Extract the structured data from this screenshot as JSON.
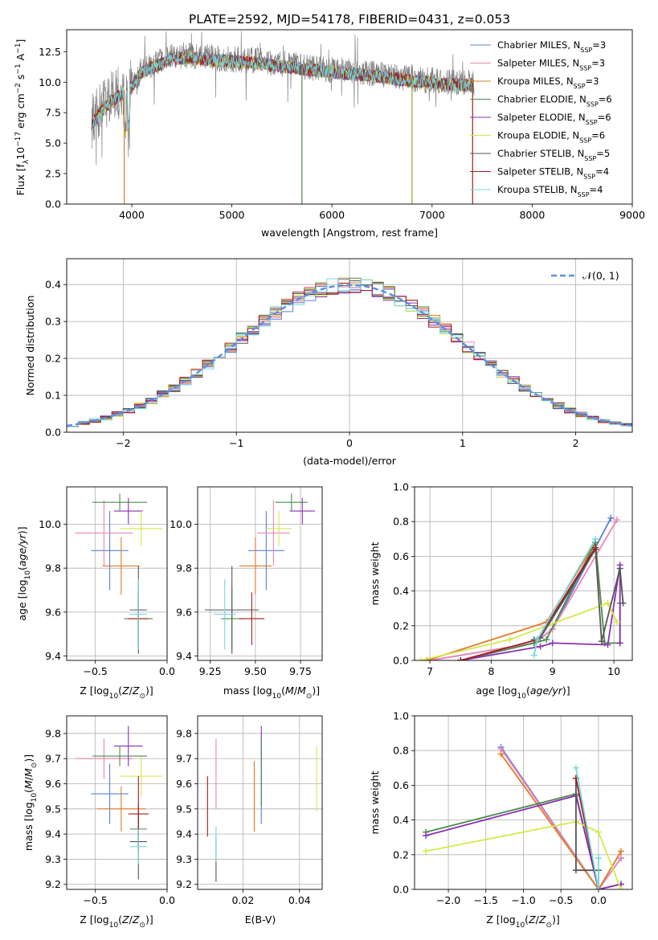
{
  "figure_title": "PLATE=2592, MJD=54178, FIBERID=0431, z=0.053",
  "colors": {
    "Chabrier MILES": "#5b7fd6",
    "Salpeter MILES": "#ee85b5",
    "Kroupa MILES": "#e07b25",
    "Chabrier ELODIE": "#4c8a4c",
    "Salpeter ELODIE": "#8b2fb5",
    "Kroupa ELODIE": "#d4e84a",
    "Chabrier STELIB": "#555555",
    "Salpeter STELIB": "#a01c1c",
    "Kroupa STELIB": "#74d8e0",
    "normal": "#5b8ee6",
    "grid": "#b0b0b0"
  },
  "chart_data": [
    {
      "id": "spectrum",
      "type": "line",
      "title": "PLATE=2592, MJD=54178, FIBERID=0431, z=0.053",
      "xlabel": "wavelength [Angstrom, rest frame]",
      "ylabel": "Flux [f_λ 10^-17 erg cm^-2 s^-1 A^-1]",
      "xlim": [
        3350,
        9000
      ],
      "ylim": [
        0,
        14.3
      ],
      "xticks": [
        "4000",
        "5000",
        "6000",
        "7000",
        "8000",
        "9000"
      ],
      "yticks": [
        "0.0",
        "2.5",
        "5.0",
        "7.5",
        "10.0",
        "12.5"
      ],
      "grid": false,
      "legend_position": "right",
      "data_range": [
        3600,
        7420
      ],
      "continuum": [
        [
          3600,
          6.8
        ],
        [
          3700,
          7.8
        ],
        [
          3800,
          8.7
        ],
        [
          3900,
          9.2
        ],
        [
          4000,
          9.8
        ],
        [
          4100,
          11.0
        ],
        [
          4200,
          11.4
        ],
        [
          4300,
          11.7
        ],
        [
          4400,
          12.1
        ],
        [
          4600,
          12.2
        ],
        [
          4800,
          12.0
        ],
        [
          5000,
          11.9
        ],
        [
          5200,
          11.8
        ],
        [
          5500,
          11.5
        ],
        [
          5800,
          11.2
        ],
        [
          6000,
          11.0
        ],
        [
          6300,
          10.8
        ],
        [
          6600,
          10.5
        ],
        [
          6900,
          10.2
        ],
        [
          7200,
          10.0
        ],
        [
          7420,
          9.9
        ]
      ],
      "series": [
        {
          "name": "Chabrier MILES",
          "nssp": "3"
        },
        {
          "name": "Salpeter MILES",
          "nssp": "3"
        },
        {
          "name": "Kroupa MILES",
          "nssp": "3"
        },
        {
          "name": "Chabrier ELODIE",
          "nssp": "6"
        },
        {
          "name": "Salpeter ELODIE",
          "nssp": "6"
        },
        {
          "name": "Kroupa ELODIE",
          "nssp": "6"
        },
        {
          "name": "Chabrier STELIB",
          "nssp": "5"
        },
        {
          "name": "Salpeter STELIB",
          "nssp": "4"
        },
        {
          "name": "Kroupa STELIB",
          "nssp": "4"
        }
      ],
      "legend_suffix": "N",
      "legend_subscript": "SSP",
      "spikes": [
        {
          "x": 3925,
          "color": "#e07b25"
        },
        {
          "x": 5700,
          "color": "#4c8a4c"
        },
        {
          "x": 6800,
          "color": "#a0a020"
        },
        {
          "x": 7405,
          "color": "#a01c1c"
        }
      ]
    },
    {
      "id": "residuals",
      "type": "step",
      "xlabel": "(data-model)/error",
      "ylabel": "Normed distribution",
      "xlim": [
        -2.5,
        2.5
      ],
      "ylim": [
        0,
        0.47
      ],
      "xticks": [
        "−2",
        "−1",
        "0",
        "1",
        "2"
      ],
      "yticks": [
        "0.0",
        "0.1",
        "0.2",
        "0.3",
        "0.4"
      ],
      "grid": true,
      "legend": "𝒩(0, 1)",
      "legend_position": "top-right",
      "bin_width": 0.1
    },
    {
      "id": "age-vs-Z",
      "type": "errorbar",
      "xlabel": "Z [log10(Z/Z⊙)]",
      "ylabel": "age [log10(age/yr)]",
      "xlim": [
        -0.7,
        0.0
      ],
      "ylim": [
        9.38,
        10.17
      ],
      "xticks": [
        "−0.5",
        "0.0"
      ],
      "yticks": [
        "9.4",
        "9.6",
        "9.8",
        "10.0"
      ],
      "grid": true,
      "points": [
        {
          "series": "Chabrier MILES",
          "x": -0.4,
          "xerr": 0.13,
          "y": 9.88,
          "yerr": 0.18
        },
        {
          "series": "Salpeter MILES",
          "x": -0.44,
          "xerr": 0.2,
          "y": 9.96,
          "yerr": 0.15
        },
        {
          "series": "Kroupa MILES",
          "x": -0.32,
          "xerr": 0.13,
          "y": 9.81,
          "yerr": 0.13
        },
        {
          "series": "Chabrier ELODIE",
          "x": -0.2,
          "xerr": 0.1,
          "y": 9.57,
          "yerr": 0.14
        },
        {
          "series": "Salpeter ELODIE",
          "x": -0.27,
          "xerr": 0.1,
          "y": 10.06,
          "yerr": 0.06
        },
        {
          "series": "Kroupa ELODIE",
          "x": -0.18,
          "xerr": 0.15,
          "y": 9.98,
          "yerr": 0.08
        },
        {
          "series": "Chabrier STELIB",
          "x": -0.2,
          "xerr": 0.06,
          "y": 9.61,
          "yerr": 0.2
        },
        {
          "series": "Salpeter STELIB",
          "x": -0.2,
          "xerr": 0.07,
          "y": 9.57,
          "yerr": 0.12
        },
        {
          "series": "Kroupa STELIB",
          "x": -0.2,
          "xerr": 0.06,
          "y": 9.59,
          "yerr": 0.16
        },
        {
          "series": "Chabrier ELODIE",
          "x": -0.33,
          "xerr": 0.19,
          "y": 10.1,
          "yerr": 0.04
        }
      ]
    },
    {
      "id": "age-vs-mass",
      "type": "errorbar",
      "xlabel": "mass [log10(M/M⊙)]",
      "ylabel": "",
      "xlim": [
        9.18,
        9.87
      ],
      "ylim": [
        9.38,
        10.17
      ],
      "xticks": [
        "9.25",
        "9.50",
        "9.75"
      ],
      "yticks": [
        "9.4",
        "9.6",
        "9.8",
        "10.0"
      ],
      "grid": true,
      "points": [
        {
          "series": "Chabrier MILES",
          "x": 9.56,
          "xerr": 0.1,
          "y": 9.88,
          "yerr": 0.18
        },
        {
          "series": "Salpeter MILES",
          "x": 9.6,
          "xerr": 0.09,
          "y": 9.96,
          "yerr": 0.15
        },
        {
          "series": "Kroupa MILES",
          "x": 9.5,
          "xerr": 0.09,
          "y": 9.81,
          "yerr": 0.13
        },
        {
          "series": "Chabrier ELODIE",
          "x": 9.37,
          "xerr": 0.06,
          "y": 9.57,
          "yerr": 0.14
        },
        {
          "series": "Salpeter ELODIE",
          "x": 9.76,
          "xerr": 0.07,
          "y": 10.06,
          "yerr": 0.06
        },
        {
          "series": "Kroupa ELODIE",
          "x": 9.63,
          "xerr": 0.07,
          "y": 9.98,
          "yerr": 0.08
        },
        {
          "series": "Chabrier STELIB",
          "x": 9.37,
          "xerr": 0.15,
          "y": 9.61,
          "yerr": 0.2
        },
        {
          "series": "Salpeter STELIB",
          "x": 9.48,
          "xerr": 0.07,
          "y": 9.57,
          "yerr": 0.12
        },
        {
          "series": "Kroupa STELIB",
          "x": 9.33,
          "xerr": 0.06,
          "y": 9.59,
          "yerr": 0.16
        },
        {
          "series": "Chabrier ELODIE",
          "x": 9.7,
          "xerr": 0.09,
          "y": 10.1,
          "yerr": 0.04
        }
      ]
    },
    {
      "id": "massweight-vs-age",
      "type": "line",
      "xlabel": "age [log10(age/yr)]",
      "ylabel": "mass weight",
      "xlim": [
        6.75,
        10.3
      ],
      "ylim": [
        0,
        1.0
      ],
      "xticks": [
        "7",
        "8",
        "9",
        "10"
      ],
      "yticks": [
        "0.0",
        "0.2",
        "0.4",
        "0.6",
        "0.8",
        "1.0"
      ],
      "grid": true,
      "series": [
        {
          "name": "Chabrier MILES",
          "x": [
            7.0,
            8.7,
            9.0,
            9.95
          ],
          "y": [
            0.0,
            0.1,
            0.18,
            0.82
          ]
        },
        {
          "name": "Salpeter MILES",
          "x": [
            7.0,
            8.7,
            9.0,
            10.05
          ],
          "y": [
            0.0,
            0.1,
            0.18,
            0.81
          ]
        },
        {
          "name": "Kroupa MILES",
          "x": [
            6.95,
            8.9,
            9.7
          ],
          "y": [
            0.0,
            0.22,
            0.68
          ]
        },
        {
          "name": "Chabrier ELODIE",
          "x": [
            7.5,
            8.7,
            8.9,
            9.7,
            9.85,
            10.1,
            10.1
          ],
          "y": [
            0.0,
            0.1,
            0.12,
            0.68,
            0.1,
            0.1,
            0.33
          ]
        },
        {
          "name": "Salpeter ELODIE",
          "x": [
            7.5,
            8.8,
            9.0,
            9.9,
            10.1,
            10.1
          ],
          "y": [
            0.0,
            0.08,
            0.1,
            0.09,
            0.55,
            0.1
          ]
        },
        {
          "name": "Kroupa ELODIE",
          "x": [
            6.85,
            8.3,
            9.9,
            10.05
          ],
          "y": [
            0.0,
            0.12,
            0.33,
            0.22
          ]
        },
        {
          "name": "Chabrier STELIB",
          "x": [
            8.7,
            8.8,
            9.7,
            9.8,
            10.1,
            10.15
          ],
          "y": [
            0.12,
            0.13,
            0.64,
            0.11,
            0.53,
            0.33
          ]
        },
        {
          "name": "Salpeter STELIB",
          "x": [
            7.5,
            8.75,
            9.7
          ],
          "y": [
            0.0,
            0.12,
            0.65
          ]
        },
        {
          "name": "Kroupa STELIB",
          "x": [
            8.7,
            8.75,
            9.7
          ],
          "y": [
            0.03,
            0.12,
            0.7
          ]
        }
      ]
    },
    {
      "id": "mass-vs-Z",
      "type": "errorbar",
      "xlabel": "Z [log10(Z/Z⊙)]",
      "ylabel": "mass [log10(M/M⊙)]",
      "xlim": [
        -0.7,
        0.0
      ],
      "ylim": [
        9.18,
        9.87
      ],
      "xticks": [
        "−0.5",
        "0.0"
      ],
      "yticks": [
        "9.2",
        "9.3",
        "9.4",
        "9.5",
        "9.6",
        "9.7",
        "9.8"
      ],
      "grid": true,
      "points": [
        {
          "series": "Chabrier MILES",
          "x": -0.4,
          "xerr": 0.13,
          "y": 9.56,
          "yerr": 0.12
        },
        {
          "series": "Salpeter MILES",
          "x": -0.44,
          "xerr": 0.2,
          "y": 9.7,
          "yerr": 0.08
        },
        {
          "series": "Kroupa MILES",
          "x": -0.32,
          "xerr": 0.17,
          "y": 9.5,
          "yerr": 0.09
        },
        {
          "series": "Chabrier ELODIE",
          "x": -0.2,
          "xerr": 0.06,
          "y": 9.42,
          "yerr": 0.07
        },
        {
          "series": "Salpeter ELODIE",
          "x": -0.27,
          "xerr": 0.1,
          "y": 9.75,
          "yerr": 0.08
        },
        {
          "series": "Kroupa ELODIE",
          "x": -0.18,
          "xerr": 0.15,
          "y": 9.63,
          "yerr": 0.08
        },
        {
          "series": "Chabrier STELIB",
          "x": -0.2,
          "xerr": 0.06,
          "y": 9.37,
          "yerr": 0.15
        },
        {
          "series": "Salpeter STELIB",
          "x": -0.2,
          "xerr": 0.07,
          "y": 9.48,
          "yerr": 0.15
        },
        {
          "series": "Kroupa STELIB",
          "x": -0.2,
          "xerr": 0.06,
          "y": 9.35,
          "yerr": 0.07
        },
        {
          "series": "Chabrier ELODIE",
          "x": -0.33,
          "xerr": 0.19,
          "y": 9.71,
          "yerr": 0.04
        }
      ]
    },
    {
      "id": "mass-vs-ebv",
      "type": "errorbar",
      "xlabel": "E(B-V)",
      "ylabel": "",
      "xlim": [
        0.004,
        0.048
      ],
      "ylim": [
        9.18,
        9.87
      ],
      "xticks": [
        "0.02",
        "0.04"
      ],
      "yticks": [
        "9.2",
        "9.3",
        "9.4",
        "9.5",
        "9.6",
        "9.7",
        "9.8"
      ],
      "grid": true,
      "points": [
        {
          "series": "Salpeter MILES",
          "x": 0.0105,
          "xerr": 0,
          "y": 9.64,
          "yerr": 0.14
        },
        {
          "series": "Kroupa MILES",
          "x": 0.024,
          "xerr": 0,
          "y": 9.55,
          "yerr": 0.14
        },
        {
          "series": "Chabrier MILES",
          "x": 0.0265,
          "xerr": 0,
          "y": 9.56,
          "yerr": 0.12
        },
        {
          "series": "Salpeter ELODIE",
          "x": 0.0265,
          "xerr": 0,
          "y": 9.75,
          "yerr": 0.08
        },
        {
          "series": "Chabrier ELODIE",
          "x": 0.0265,
          "xerr": 0,
          "y": 9.65,
          "yerr": 0.14
        },
        {
          "series": "Kroupa ELODIE",
          "x": 0.046,
          "xerr": 0,
          "y": 9.62,
          "yerr": 0.13
        },
        {
          "series": "Salpeter STELIB",
          "x": 0.0075,
          "xerr": 0,
          "y": 9.51,
          "yerr": 0.12
        },
        {
          "series": "Chabrier STELIB",
          "x": 0.0105,
          "xerr": 0,
          "y": 9.3,
          "yerr": 0.09
        },
        {
          "series": "Kroupa STELIB",
          "x": 0.0105,
          "xerr": 0,
          "y": 9.36,
          "yerr": 0.07
        }
      ]
    },
    {
      "id": "massweight-vs-Z",
      "type": "line",
      "xlabel": "Z [log10(Z/Z⊙)]",
      "ylabel": "mass weight",
      "xlim": [
        -2.45,
        0.45
      ],
      "ylim": [
        0,
        1.0
      ],
      "xticks": [
        "−2.0",
        "−1.5",
        "−1.0",
        "−0.5",
        "0.0"
      ],
      "yticks": [
        "0.0",
        "0.2",
        "0.4",
        "0.6",
        "0.8",
        "1.0"
      ],
      "grid": true,
      "series": [
        {
          "name": "Chabrier MILES",
          "x": [
            -1.3,
            0.0,
            0.3
          ],
          "y": [
            0.82,
            0.0,
            0.18
          ]
        },
        {
          "name": "Salpeter MILES",
          "x": [
            -1.3,
            0.0,
            0.3
          ],
          "y": [
            0.81,
            0.0,
            0.18
          ]
        },
        {
          "name": "Kroupa MILES",
          "x": [
            -1.3,
            0.0,
            0.3
          ],
          "y": [
            0.78,
            0.0,
            0.22
          ]
        },
        {
          "name": "Chabrier ELODIE",
          "x": [
            -2.3,
            -0.3,
            0.0,
            0.3
          ],
          "y": [
            0.33,
            0.55,
            0.0,
            0.03
          ]
        },
        {
          "name": "Salpeter ELODIE",
          "x": [
            -2.3,
            -0.3,
            0.0,
            0.3
          ],
          "y": [
            0.31,
            0.54,
            0.0,
            0.03
          ]
        },
        {
          "name": "Kroupa ELODIE",
          "x": [
            -2.3,
            -0.3,
            0.0,
            0.3
          ],
          "y": [
            0.22,
            0.39,
            0.33,
            0.0
          ]
        },
        {
          "name": "Chabrier STELIB",
          "x": [
            -0.3,
            -0.3,
            0.0,
            0.0
          ],
          "y": [
            0.64,
            0.11,
            0.11,
            0.0
          ]
        },
        {
          "name": "Salpeter STELIB",
          "x": [
            -0.3,
            0.0
          ],
          "y": [
            0.64,
            0.0
          ]
        },
        {
          "name": "Kroupa STELIB",
          "x": [
            -0.3,
            0.0,
            0.0
          ],
          "y": [
            0.7,
            0.0,
            0.18
          ]
        }
      ]
    }
  ]
}
